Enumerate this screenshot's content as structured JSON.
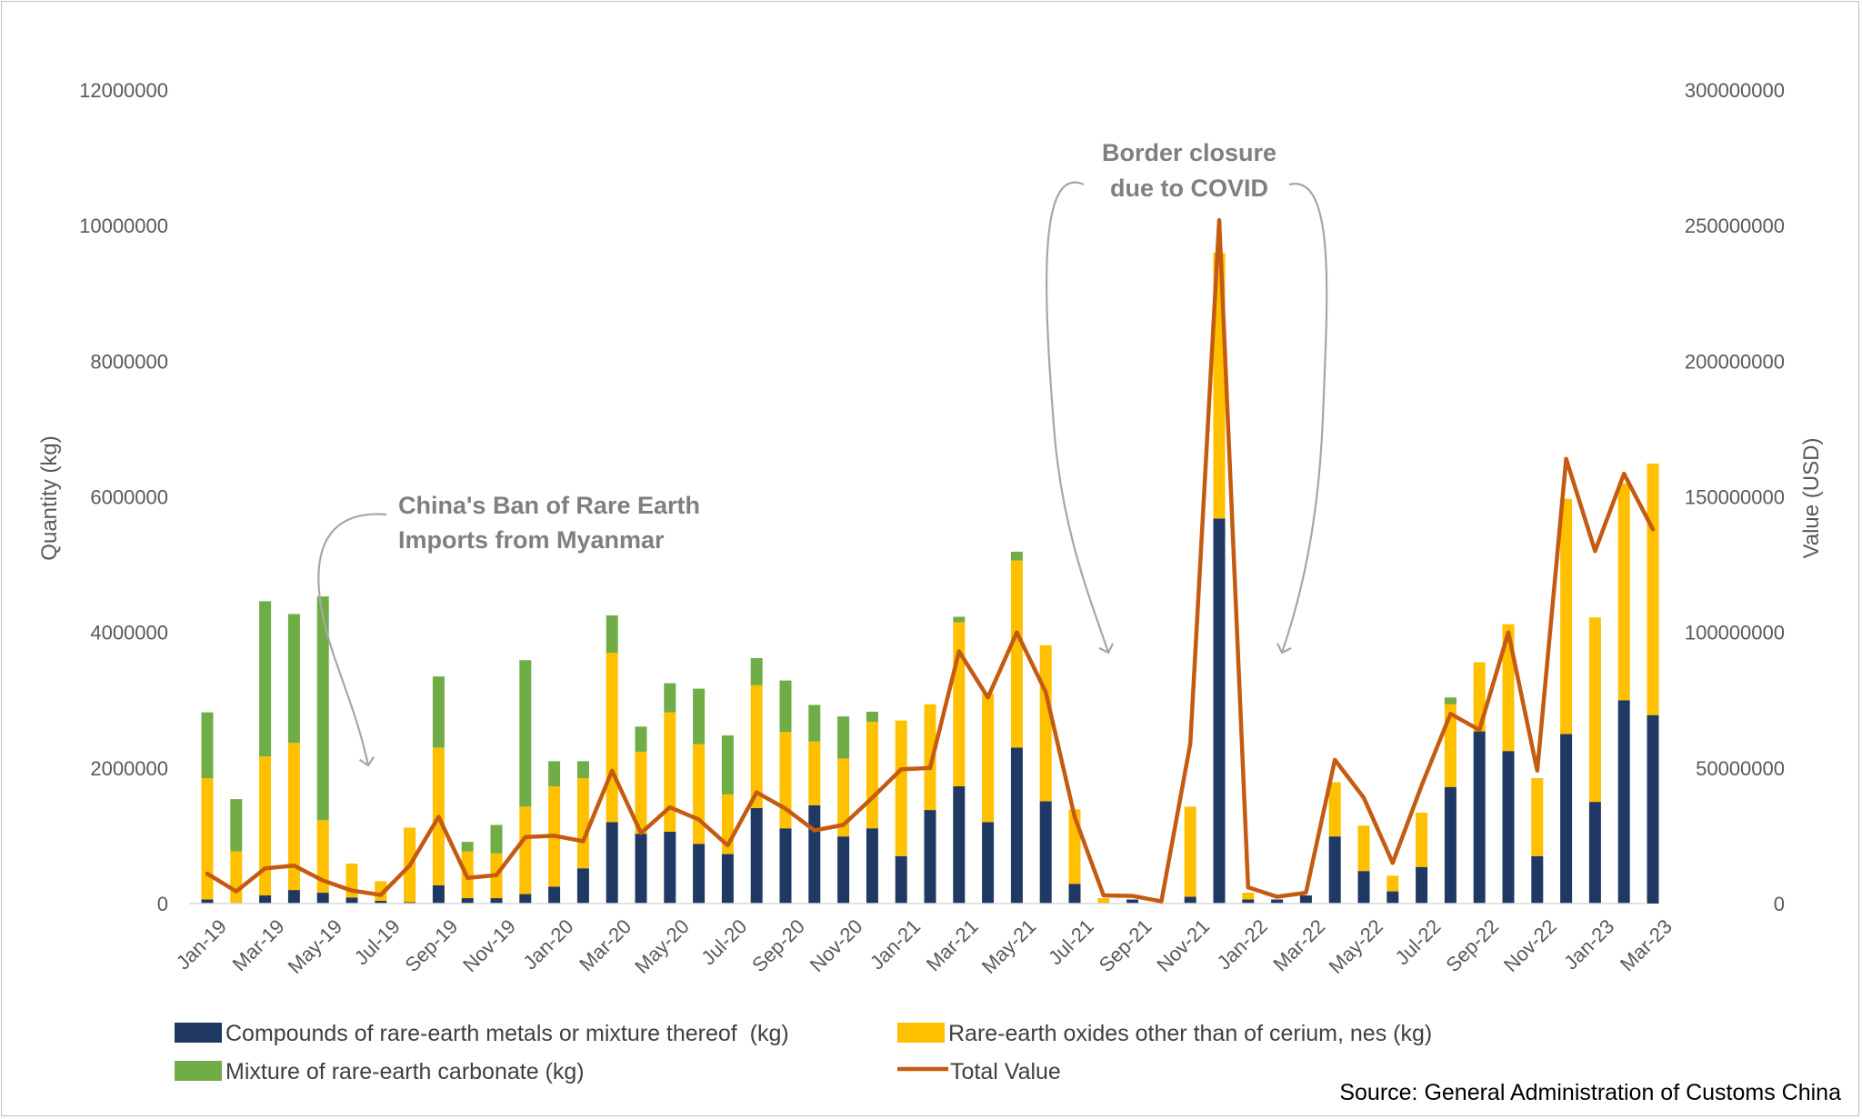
{
  "chart_data": {
    "type": "bar",
    "subtype": "stacked bar with line on secondary axis",
    "source": "Source: General Administration of Customs China",
    "y_left_label": "Quantity (kg)",
    "y_right_label": "Value (USD)",
    "y_left_lim": [
      0,
      12000000
    ],
    "y_right_lim": [
      0,
      300000000
    ],
    "y_left_ticks": [
      "0",
      "2000000",
      "4000000",
      "6000000",
      "8000000",
      "10000000",
      "12000000"
    ],
    "y_right_ticks": [
      "0",
      "50000000",
      "100000000",
      "150000000",
      "200000000",
      "250000000",
      "300000000"
    ],
    "categories": [
      "Jan-19",
      "Feb-19",
      "Mar-19",
      "Apr-19",
      "May-19",
      "Jun-19",
      "Jul-19",
      "Aug-19",
      "Sep-19",
      "Oct-19",
      "Nov-19",
      "Dec-19",
      "Jan-20",
      "Feb-20",
      "Mar-20",
      "Apr-20",
      "May-20",
      "Jun-20",
      "Jul-20",
      "Aug-20",
      "Sep-20",
      "Oct-20",
      "Nov-20",
      "Dec-20",
      "Jan-21",
      "Feb-21",
      "Mar-21",
      "Apr-21",
      "May-21",
      "Jun-21",
      "Jul-21",
      "Aug-21",
      "Sep-21",
      "Oct-21",
      "Nov-21",
      "Dec-21",
      "Jan-22",
      "Feb-22",
      "Mar-22",
      "Apr-22",
      "May-22",
      "Jun-22",
      "Jul-22",
      "Aug-22",
      "Sep-22",
      "Oct-22",
      "Nov-22",
      "Dec-22",
      "Jan-23",
      "Feb-23",
      "Mar-23"
    ],
    "x_tick_labels": [
      "Jan-19",
      "Mar-19",
      "May-19",
      "Jul-19",
      "Sep-19",
      "Nov-19",
      "Jan-20",
      "Mar-20",
      "May-20",
      "Jul-20",
      "Sep-20",
      "Nov-20",
      "Jan-21",
      "Mar-21",
      "May-21",
      "Jul-21",
      "Sep-21",
      "Nov-21",
      "Jan-22",
      "Mar-22",
      "May-22",
      "Jul-22",
      "Sep-22",
      "Nov-22",
      "Jan-23",
      "Mar-23"
    ],
    "grid": false,
    "legend_position": "bottom",
    "series": [
      {
        "name": "Compounds of rare-earth metals or mixture thereof  (kg)",
        "axis": "left",
        "kind": "bar",
        "color": "#1f3864",
        "values": [
          60000,
          0,
          120000,
          200000,
          160000,
          90000,
          40000,
          20000,
          270000,
          80000,
          80000,
          140000,
          250000,
          520000,
          1200000,
          1030000,
          1060000,
          880000,
          730000,
          1410000,
          1110000,
          1450000,
          990000,
          1110000,
          700000,
          1380000,
          1730000,
          1200000,
          2300000,
          1510000,
          290000,
          0,
          60000,
          0,
          100000,
          5680000,
          60000,
          60000,
          120000,
          990000,
          480000,
          180000,
          540000,
          1720000,
          2540000,
          2250000,
          700000,
          2500000,
          1500000,
          3000000,
          2780000
        ]
      },
      {
        "name": "Rare-earth oxides other than of cerium, nes (kg)",
        "axis": "left",
        "kind": "bar",
        "color": "#ffc000",
        "values": [
          1790000,
          770000,
          2050000,
          2170000,
          1070000,
          500000,
          290000,
          1100000,
          2030000,
          690000,
          660000,
          1290000,
          1480000,
          1330000,
          2500000,
          1210000,
          1760000,
          1470000,
          880000,
          1810000,
          1420000,
          940000,
          1150000,
          1570000,
          2000000,
          1560000,
          2420000,
          1900000,
          2760000,
          2300000,
          1100000,
          80000,
          0,
          0,
          1330000,
          3920000,
          100000,
          0,
          0,
          800000,
          670000,
          230000,
          800000,
          1220000,
          1020000,
          1870000,
          1150000,
          3470000,
          2720000,
          3200000,
          3710000
        ]
      },
      {
        "name": "Mixture of rare-earth carbonate (kg)",
        "axis": "left",
        "kind": "bar",
        "color": "#70ad47",
        "values": [
          970000,
          770000,
          2290000,
          1900000,
          3300000,
          0,
          0,
          0,
          1050000,
          140000,
          420000,
          2160000,
          370000,
          250000,
          550000,
          370000,
          430000,
          820000,
          870000,
          400000,
          760000,
          540000,
          620000,
          150000,
          0,
          0,
          80000,
          0,
          130000,
          0,
          0,
          0,
          0,
          0,
          0,
          0,
          0,
          0,
          0,
          0,
          0,
          0,
          0,
          100000,
          0,
          0,
          0,
          0,
          0,
          0,
          0
        ]
      },
      {
        "name": "Total Value",
        "axis": "right",
        "kind": "line",
        "color": "#c55a11",
        "values": [
          11000000,
          4500000,
          13000000,
          14000000,
          8500000,
          4800000,
          3200000,
          14000000,
          32000000,
          9500000,
          10500000,
          24500000,
          25000000,
          23000000,
          49000000,
          26000000,
          35500000,
          31000000,
          21500000,
          41000000,
          35000000,
          27000000,
          29000000,
          39000000,
          49500000,
          50000000,
          93000000,
          76000000,
          100000000,
          78000000,
          32000000,
          3000000,
          2800000,
          800000,
          59000000,
          252000000,
          6000000,
          2500000,
          4000000,
          53000000,
          39000000,
          15000000,
          43500000,
          70000000,
          64000000,
          100000000,
          49000000,
          164000000,
          130000000,
          158500000,
          138000000
        ]
      }
    ],
    "annotations": [
      {
        "lines": [
          "China's Ban of Rare Earth",
          "Imports from Myanmar"
        ]
      },
      {
        "lines": [
          "Border closure",
          "due to COVID"
        ]
      }
    ]
  }
}
